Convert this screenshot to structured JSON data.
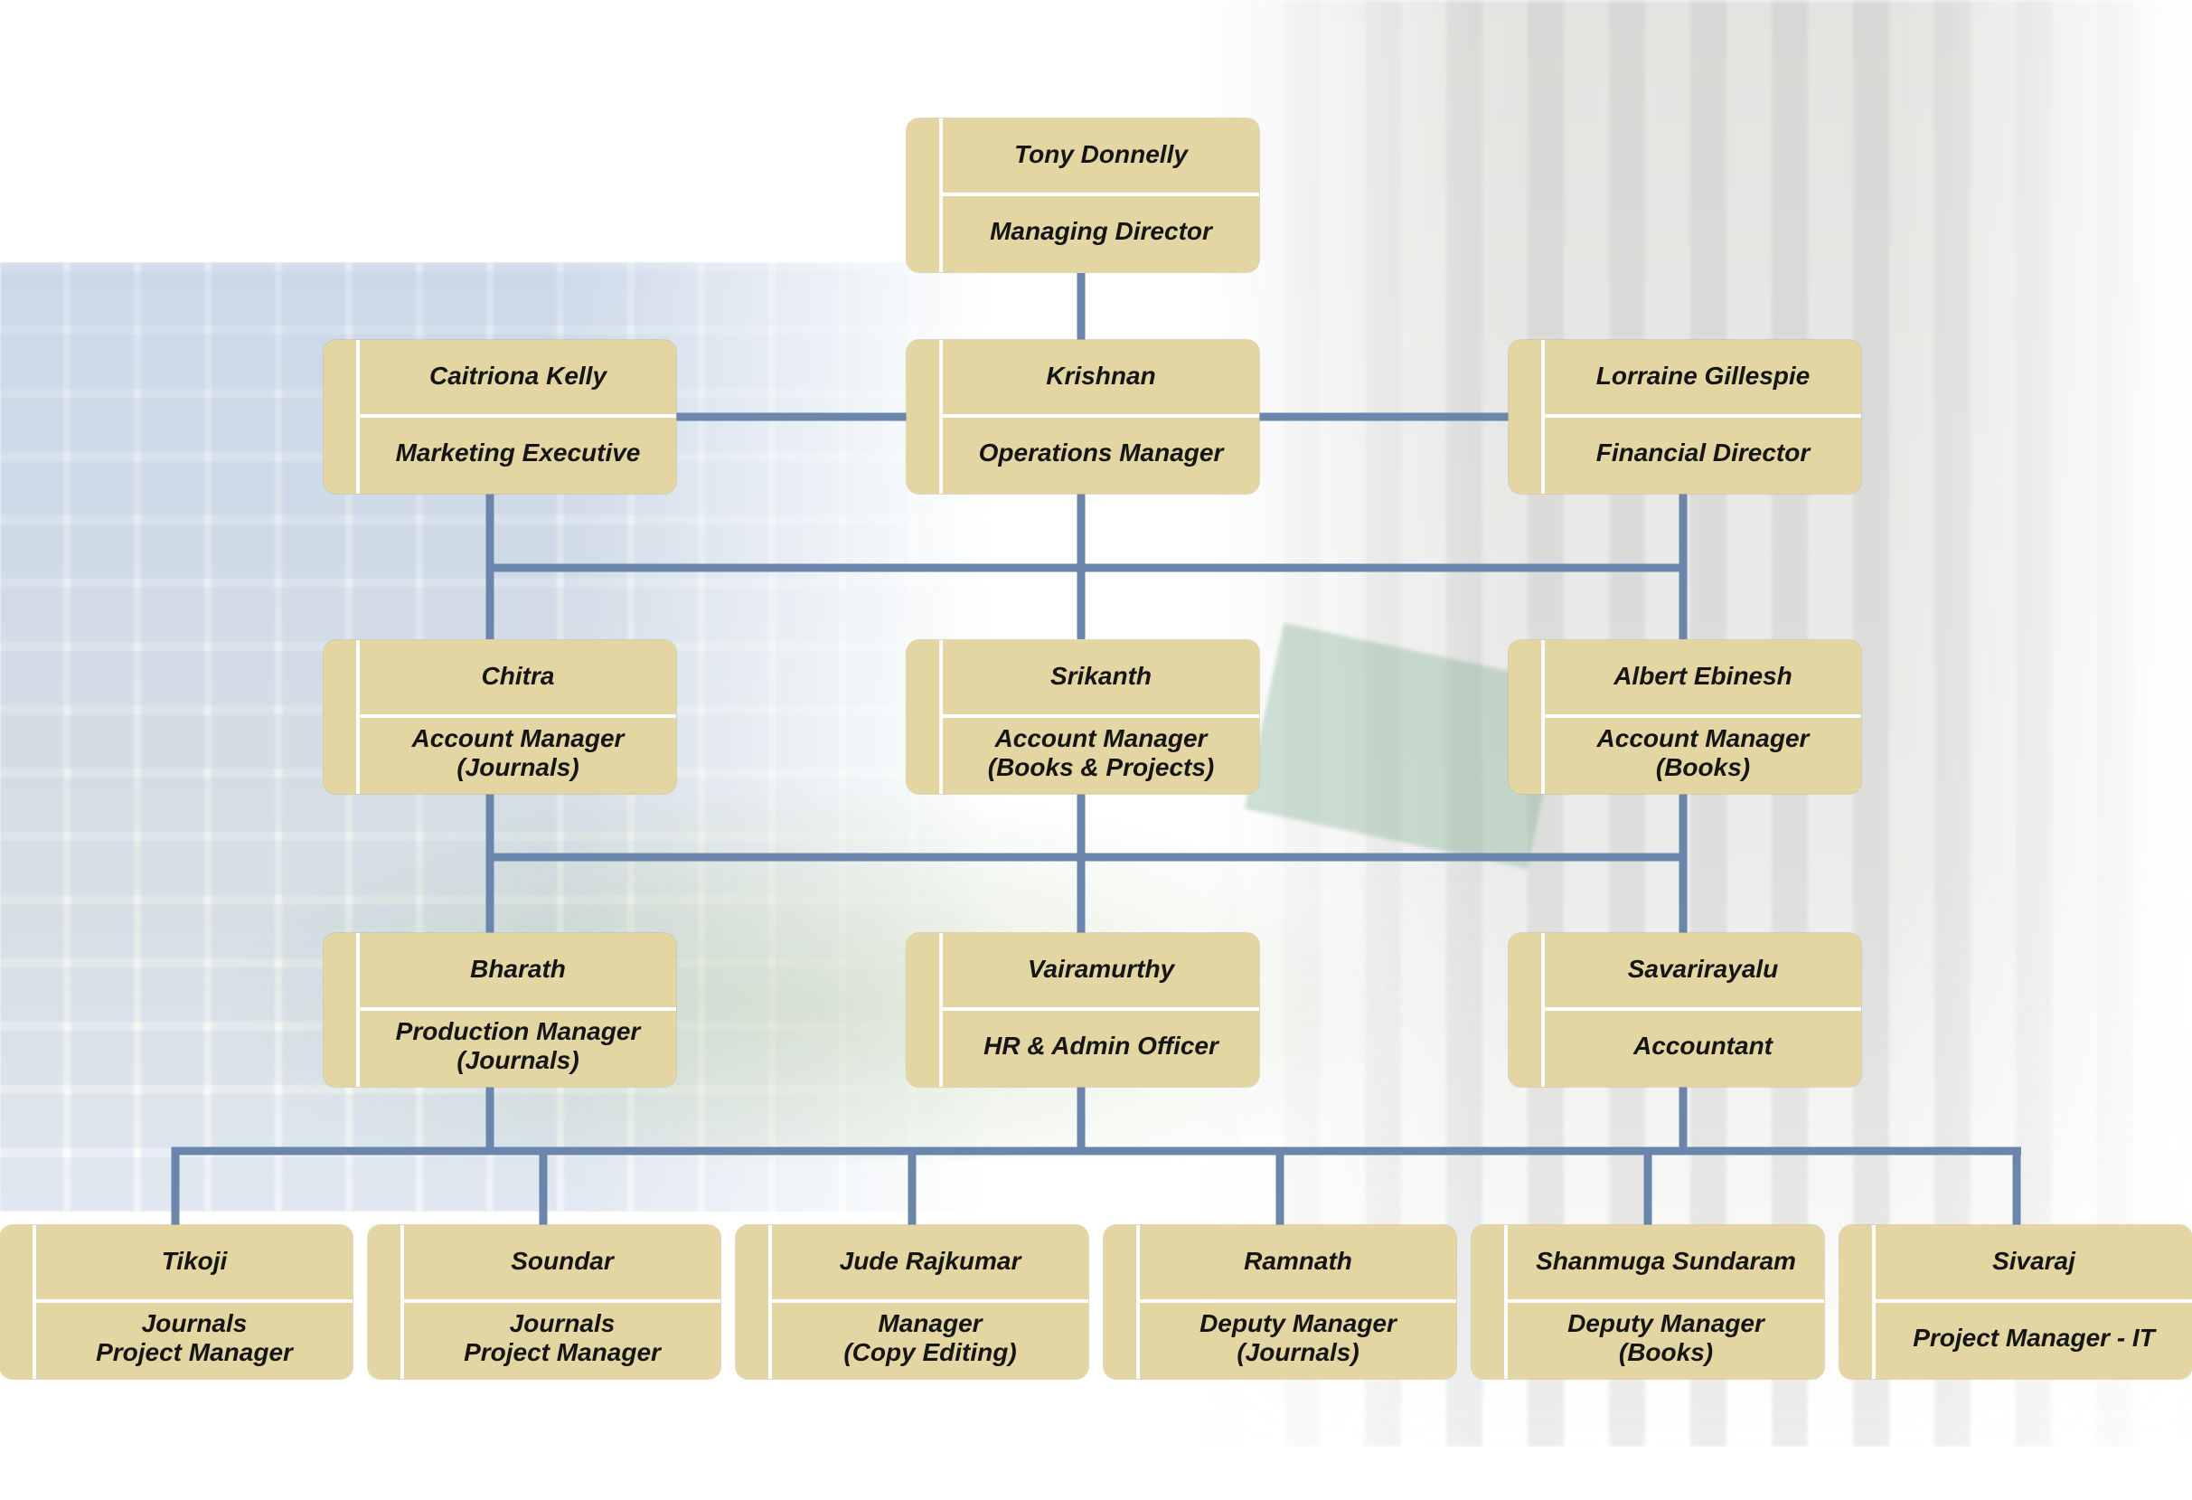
{
  "colors": {
    "box": "#e3d6a2",
    "connector": "#6b86ad",
    "divider": "#ffffff"
  },
  "org": {
    "ceo": {
      "name": "Tony Donnelly",
      "role": "Managing Director"
    },
    "level1": [
      {
        "name": "Caitriona Kelly",
        "role": "Marketing Executive"
      },
      {
        "name": "Krishnan",
        "role": "Operations Manager"
      },
      {
        "name": "Lorraine Gillespie",
        "role": "Financial Director"
      }
    ],
    "level2": [
      {
        "name": "Chitra",
        "role": "Account Manager\n(Journals)"
      },
      {
        "name": "Srikanth",
        "role": "Account Manager\n(Books & Projects)"
      },
      {
        "name": "Albert Ebinesh",
        "role": "Account Manager\n(Books)"
      }
    ],
    "level3": [
      {
        "name": "Bharath",
        "role": "Production Manager\n(Journals)"
      },
      {
        "name": "Vairamurthy",
        "role": "HR & Admin Officer"
      },
      {
        "name": "Savarirayalu",
        "role": "Accountant"
      }
    ],
    "level4": [
      {
        "name": "Tikoji",
        "role": "Journals\nProject Manager"
      },
      {
        "name": "Soundar",
        "role": "Journals\nProject Manager"
      },
      {
        "name": "Jude Rajkumar",
        "role": "Manager\n(Copy Editing)"
      },
      {
        "name": "Ramnath",
        "role": "Deputy Manager\n(Journals)"
      },
      {
        "name": "Shanmuga Sundaram",
        "role": "Deputy Manager\n(Books)"
      },
      {
        "name": "Sivaraj",
        "role": "Project Manager - IT"
      }
    ]
  }
}
